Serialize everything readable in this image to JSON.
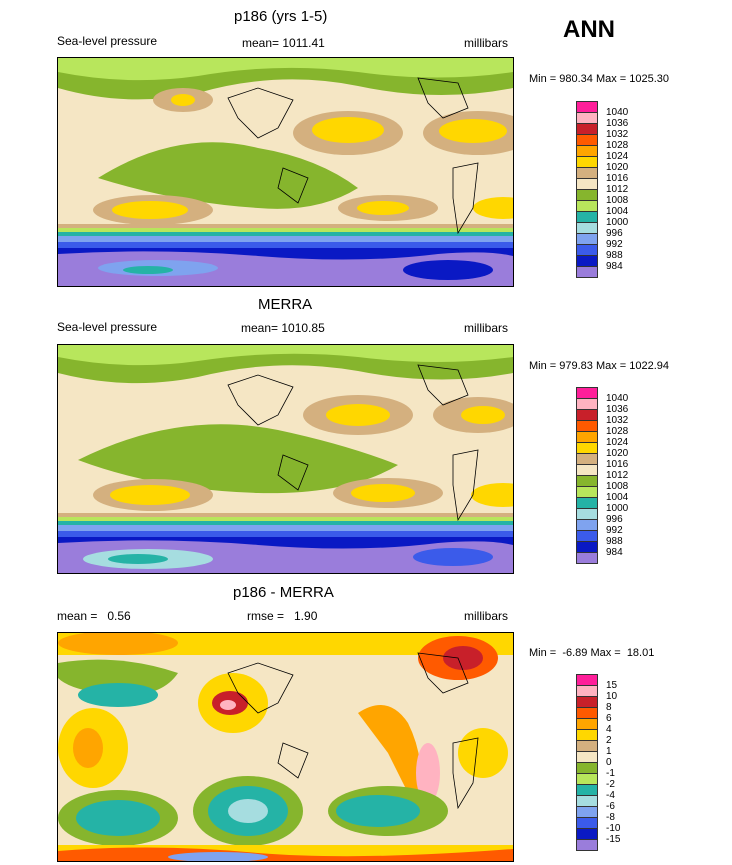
{
  "annual_label": "ANN",
  "chart_data": [
    {
      "type": "heatmap",
      "title": "p186 (yrs 1-5)",
      "variable": "Sea-level pressure",
      "stat_text": "mean= 1011.41",
      "units": "millibars",
      "minmax_text": "Min = 980.34 Max = 1025.30",
      "min": 980.34,
      "max": 1025.3,
      "legend_levels": [
        "1040",
        "1036",
        "1032",
        "1028",
        "1024",
        "1020",
        "1016",
        "1012",
        "1008",
        "1004",
        "1000",
        "996",
        "992",
        "988",
        "984"
      ],
      "legend_colors": [
        "#ff1f9a",
        "#ffb3c1",
        "#c8202a",
        "#ff5a00",
        "#ffa500",
        "#ffd700",
        "#d4b07f",
        "#f5e6c4",
        "#86b52d",
        "#b8e65c",
        "#25b3a6",
        "#a6dde0",
        "#7fa3ef",
        "#3b5bea",
        "#0a19c4",
        "#9a7ddb"
      ]
    },
    {
      "type": "heatmap",
      "title": "MERRA",
      "variable": "Sea-level pressure",
      "stat_text": "mean= 1010.85",
      "units": "millibars",
      "minmax_text": "Min = 979.83 Max = 1022.94",
      "min": 979.83,
      "max": 1022.94,
      "legend_levels": [
        "1040",
        "1036",
        "1032",
        "1028",
        "1024",
        "1020",
        "1016",
        "1012",
        "1008",
        "1004",
        "1000",
        "996",
        "992",
        "988",
        "984"
      ],
      "legend_colors": [
        "#ff1f9a",
        "#ffb3c1",
        "#c8202a",
        "#ff5a00",
        "#ffa500",
        "#ffd700",
        "#d4b07f",
        "#f5e6c4",
        "#86b52d",
        "#b8e65c",
        "#25b3a6",
        "#a6dde0",
        "#7fa3ef",
        "#3b5bea",
        "#0a19c4",
        "#9a7ddb"
      ]
    },
    {
      "type": "heatmap",
      "title": "p186 - MERRA",
      "mean_text": "mean =   0.56",
      "rmse_text": "rmse =   1.90",
      "units": "millibars",
      "minmax_text": "Min =  -6.89 Max =  18.01",
      "min": -6.89,
      "max": 18.01,
      "legend_levels": [
        "15",
        "10",
        "8",
        "6",
        "4",
        "2",
        "1",
        "0",
        "-1",
        "-2",
        "-4",
        "-6",
        "-8",
        "-10",
        "-15"
      ],
      "legend_colors": [
        "#ff1f9a",
        "#ffb3c1",
        "#c8202a",
        "#ff5a00",
        "#ffa500",
        "#ffd700",
        "#d4b07f",
        "#f5e6c4",
        "#86b52d",
        "#b8e65c",
        "#25b3a6",
        "#a6dde0",
        "#7fa3ef",
        "#3b5bea",
        "#0a19c4",
        "#9a7ddb"
      ]
    }
  ]
}
